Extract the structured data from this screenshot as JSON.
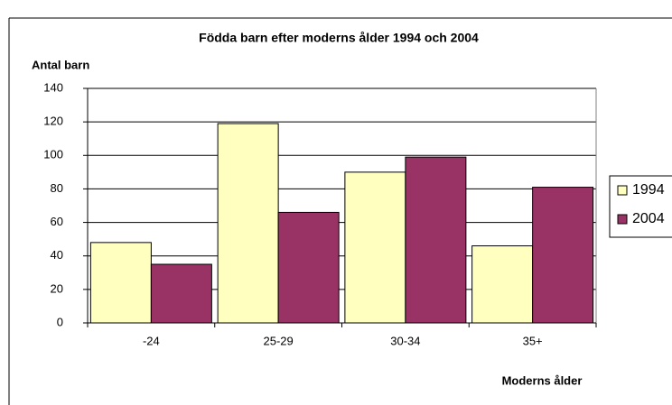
{
  "chart_data": {
    "type": "bar",
    "title": "Födda barn efter moderns ålder 1994 och 2004",
    "y_label": "Antal barn",
    "x_label": "Moderns ålder",
    "categories": [
      "-24",
      "25-29",
      "30-34",
      "35+"
    ],
    "series": [
      {
        "name": "1994",
        "color": "#ffffc0",
        "values": [
          48,
          119,
          90,
          46
        ]
      },
      {
        "name": "2004",
        "color": "#993366",
        "values": [
          35,
          66,
          99,
          81
        ]
      }
    ],
    "ylim": [
      0,
      140
    ],
    "yticks": [
      0,
      20,
      40,
      60,
      80,
      100,
      120,
      140
    ],
    "grid": true,
    "legend": "right"
  }
}
